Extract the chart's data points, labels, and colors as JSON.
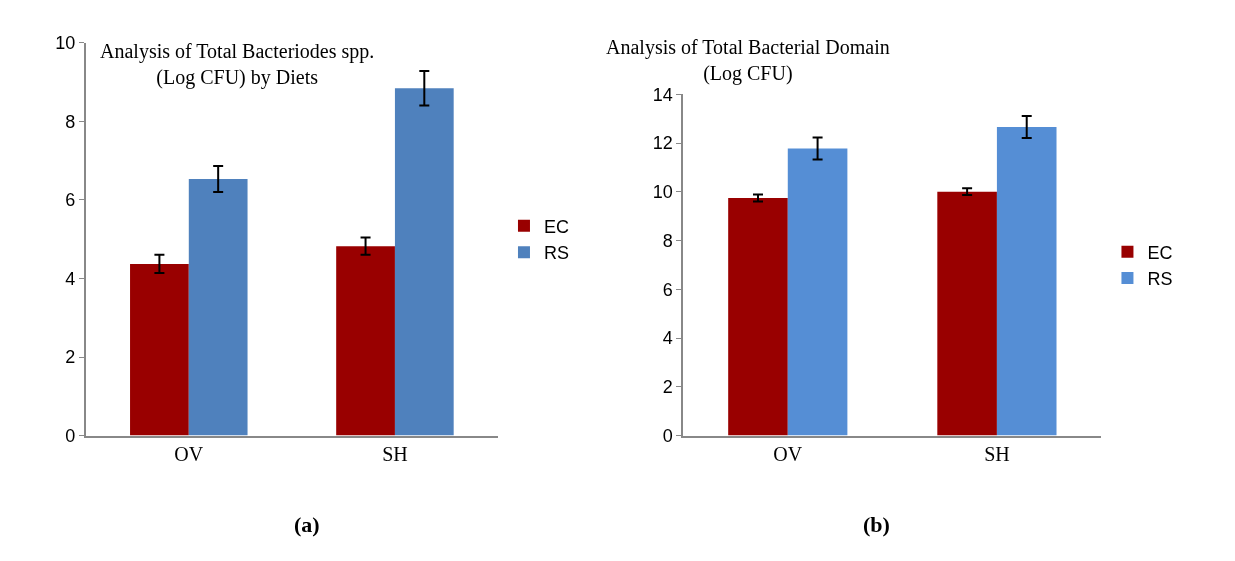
{
  "chart_data": [
    {
      "type": "bar",
      "title": "Analysis of Total Bacteriodes spp. (Log CFU) by Diets",
      "categories": [
        "OV",
        "SH"
      ],
      "series": [
        {
          "name": "EC",
          "color": "#990000",
          "values": [
            4.37,
            4.82
          ],
          "errors": [
            0.23,
            0.22
          ]
        },
        {
          "name": "RS",
          "color": "#4f81bd",
          "values": [
            6.53,
            8.84
          ],
          "errors": [
            0.33,
            0.44
          ]
        }
      ],
      "ylim": [
        0,
        10
      ],
      "yticks": [
        0,
        2,
        4,
        6,
        8,
        10
      ],
      "grid": false,
      "legend": "right",
      "annotations": [
        "(a)"
      ]
    },
    {
      "type": "bar",
      "title": "Analysis of Total Bacterial Domain (Log CFU)",
      "categories": [
        "OV",
        "SH"
      ],
      "series": [
        {
          "name": "EC",
          "color": "#990000",
          "values": [
            9.75,
            10.01
          ],
          "errors": [
            0.14,
            0.14
          ]
        },
        {
          "name": "RS",
          "color": "#558ed5",
          "values": [
            11.78,
            12.66
          ],
          "errors": [
            0.45,
            0.45
          ]
        }
      ],
      "ylim": [
        0,
        14
      ],
      "yticks": [
        0,
        2,
        4,
        6,
        8,
        10,
        12,
        14
      ],
      "grid": false,
      "legend": "right",
      "annotations": [
        "(b)"
      ]
    }
  ]
}
